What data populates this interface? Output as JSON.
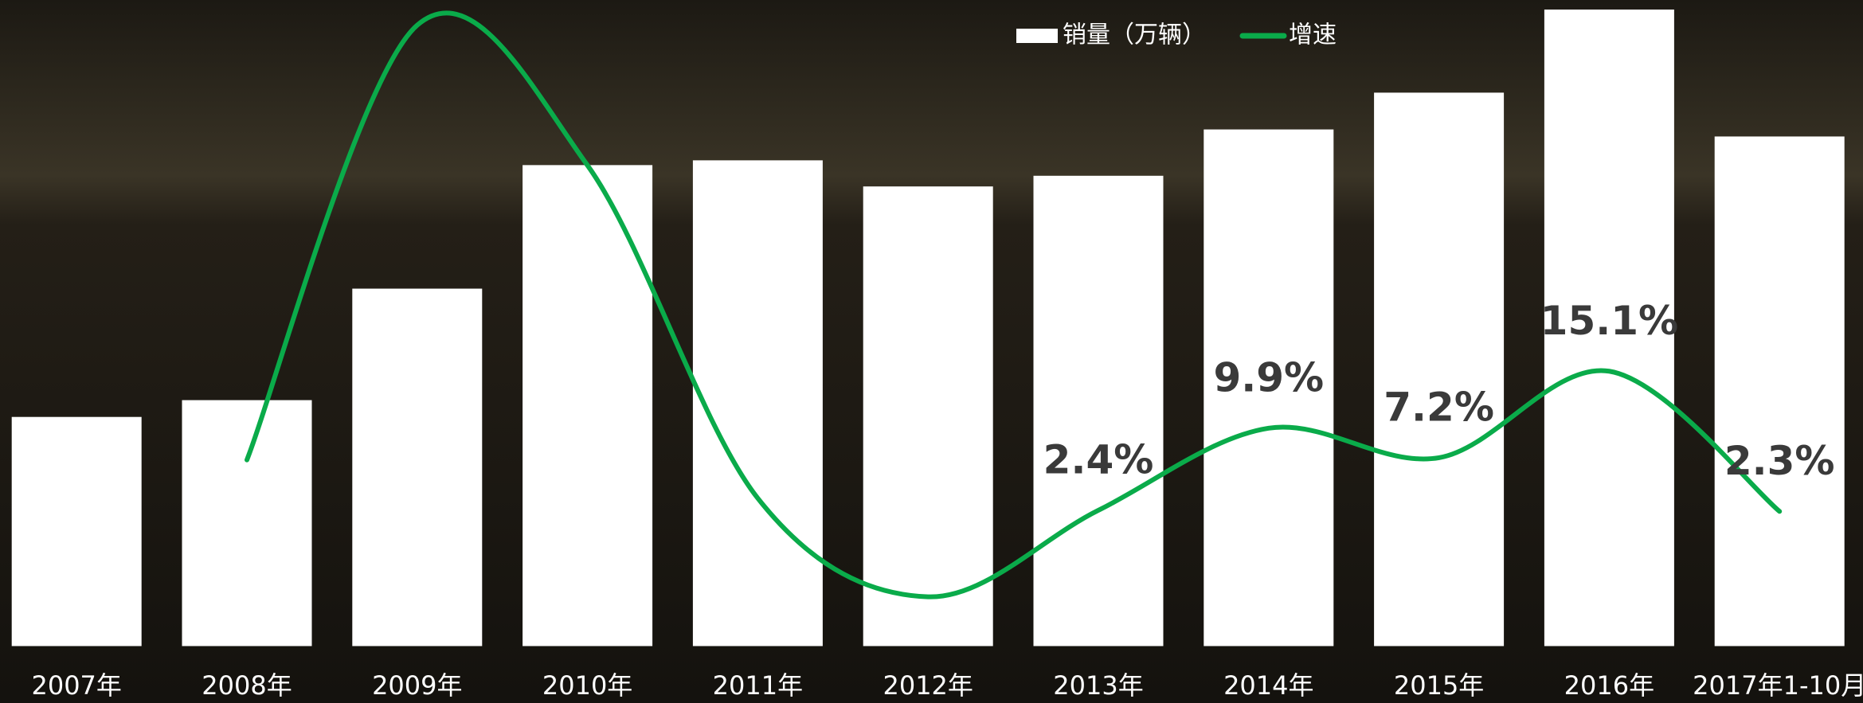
{
  "chart_data": {
    "type": "bar_line",
    "categories": [
      "2007年",
      "2008年",
      "2009年",
      "2010年",
      "2011年",
      "2012年",
      "2013年",
      "2014年",
      "2015年",
      "2016年",
      "2017年1-10月"
    ],
    "series": [
      {
        "name": "销量（万辆）",
        "type": "bar",
        "color": "#ffffff",
        "values": [
          1009,
          1083,
          1574,
          2118,
          2139,
          2024,
          2071,
          2275,
          2437,
          2803,
          2244
        ]
      },
      {
        "name": "增速",
        "type": "line",
        "axis": "y2",
        "color": "#0aab4a",
        "values": [
          null,
          7.0,
          46.7,
          33.9,
          3.5,
          -5.5,
          2.4,
          9.9,
          7.2,
          15.1,
          2.3
        ],
        "value_labels": [
          null,
          null,
          null,
          null,
          null,
          null,
          "2.4%",
          "9.9%",
          "7.2%",
          "15.1%",
          "2.3%"
        ]
      }
    ],
    "ylim": [
      0,
      2845
    ],
    "y2lim": [
      -10,
      49
    ],
    "legend": "top"
  }
}
